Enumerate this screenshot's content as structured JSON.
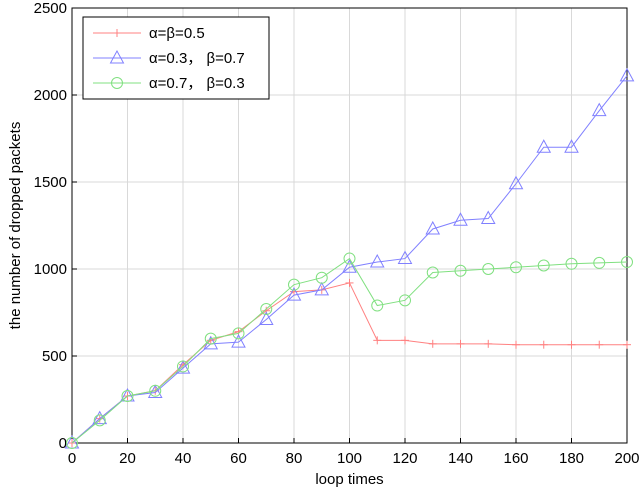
{
  "chart_data": {
    "type": "line",
    "title": "",
    "xlabel": "loop times",
    "ylabel": "the number of dropped packets",
    "xlim": [
      0,
      200
    ],
    "ylim": [
      0,
      2500
    ],
    "x_ticks": [
      "0",
      "20",
      "40",
      "60",
      "80",
      "100",
      "120",
      "140",
      "160",
      "180",
      "200"
    ],
    "y_ticks": [
      "0",
      "500",
      "1000",
      "1500",
      "2000",
      "2500"
    ],
    "grid": true,
    "legend_position": "top-left",
    "x": [
      0,
      10,
      20,
      30,
      40,
      50,
      60,
      70,
      80,
      90,
      100,
      110,
      120,
      130,
      140,
      150,
      160,
      170,
      180,
      190,
      200
    ],
    "series": [
      {
        "name": "α=β=0.5",
        "color": "#ff8080",
        "marker": "plus",
        "values": [
          0,
          140,
          270,
          300,
          450,
          590,
          640,
          760,
          870,
          880,
          920,
          590,
          590,
          570,
          570,
          570,
          565,
          565,
          565,
          565,
          565
        ]
      },
      {
        "name": "α=0.3， β=0.7",
        "color": "#8080ff",
        "marker": "triangle",
        "values": [
          0,
          140,
          270,
          290,
          430,
          570,
          580,
          710,
          850,
          880,
          1010,
          1040,
          1060,
          1230,
          1280,
          1290,
          1490,
          1700,
          1700,
          1910,
          2110
        ]
      },
      {
        "name": "α=0.7， β=0.3",
        "color": "#80e080",
        "marker": "circle",
        "values": [
          0,
          130,
          270,
          300,
          440,
          600,
          630,
          770,
          910,
          950,
          1060,
          790,
          820,
          980,
          990,
          1000,
          1010,
          1020,
          1030,
          1035,
          1040
        ]
      }
    ]
  }
}
